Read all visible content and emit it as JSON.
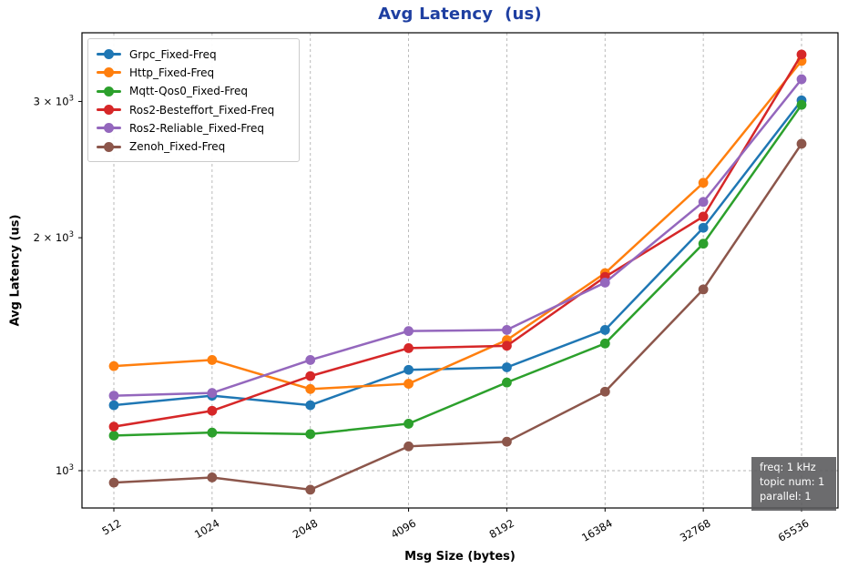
{
  "chart_data": {
    "type": "line",
    "title": "Avg Latency  (us)",
    "title_color": "#1e3fa1",
    "xlabel": "Msg Size (bytes)",
    "ylabel": "Avg Latency (us)",
    "x_scale": "log2 categories",
    "y_scale": "log10",
    "ylim": [
      895,
      3680
    ],
    "grid": "vertical dashed gridline at each x tick; horizontal dashed gridline at 1000 only",
    "legend_position": "upper left",
    "categories": [
      512,
      1024,
      2048,
      4096,
      8192,
      16384,
      32768,
      65536
    ],
    "y_ticks": [
      {
        "value": 1000,
        "label_base": "10",
        "label_exp": "3"
      },
      {
        "value": 2000,
        "label_base": "2 × 10",
        "label_exp": "3"
      },
      {
        "value": 3000,
        "label_base": "3 × 10",
        "label_exp": "3"
      }
    ],
    "series": [
      {
        "name": "Grpc_Fixed-Freq",
        "color": "#1f77b4",
        "values": [
          1215,
          1250,
          1215,
          1350,
          1360,
          1520,
          2060,
          3010
        ]
      },
      {
        "name": "Http_Fixed-Freq",
        "color": "#ff7f0e",
        "values": [
          1365,
          1390,
          1275,
          1295,
          1475,
          1800,
          2355,
          3385
        ]
      },
      {
        "name": "Mqtt-Qos0_Fixed-Freq",
        "color": "#2ca02c",
        "values": [
          1110,
          1120,
          1115,
          1150,
          1300,
          1460,
          1965,
          2970
        ]
      },
      {
        "name": "Ros2-Besteffort_Fixed-Freq",
        "color": "#d62728",
        "values": [
          1140,
          1195,
          1325,
          1440,
          1450,
          1780,
          2130,
          3450
        ]
      },
      {
        "name": "Ros2-Reliable_Fixed-Freq",
        "color": "#9467bd",
        "values": [
          1250,
          1260,
          1390,
          1515,
          1520,
          1750,
          2225,
          3205
        ]
      },
      {
        "name": "Zenoh_Fixed-Freq",
        "color": "#8c564b",
        "values": [
          965,
          980,
          945,
          1075,
          1090,
          1265,
          1715,
          2645
        ]
      }
    ],
    "annotation": {
      "lines": [
        "freq: 1 kHz",
        "topic num: 1",
        "parallel: 1"
      ]
    }
  }
}
